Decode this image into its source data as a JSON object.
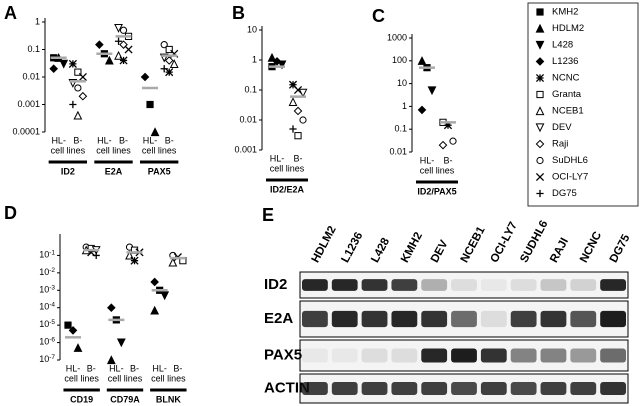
{
  "legend": {
    "names": [
      "KMH2",
      "HDLM2",
      "L428",
      "L1236",
      "NCNC",
      "Granta",
      "NCEB1",
      "DEV",
      "Raji",
      "SuDHL6",
      "OCI-LY7",
      "DG75"
    ],
    "markers": [
      "square",
      "triangle",
      "down",
      "diamond",
      "star",
      "open-square",
      "open-triangle",
      "open-down",
      "open-diamond",
      "open-circle",
      "cross",
      "plus"
    ]
  },
  "chart_data": [
    {
      "type": "scatter",
      "label": "A",
      "log_scale": true,
      "ylim": [
        0.0001,
        1
      ],
      "yticks": [
        0.0001,
        0.001,
        0.01,
        0.1,
        1
      ],
      "groups": [
        {
          "name": "ID2",
          "sublabel": "cell lines",
          "columns": [
            {
              "name": "HL-",
              "mean": 0.05,
              "points": [
                {
                  "cell": 0,
                  "value": 0.05
                },
                {
                  "cell": 1,
                  "value": 0.05
                },
                {
                  "cell": 2,
                  "value": 0.03
                },
                {
                  "cell": 3,
                  "value": 0.02
                }
              ]
            },
            {
              "name": "B-",
              "mean": 0.007,
              "points": [
                {
                  "cell": 4,
                  "value": 0.03
                },
                {
                  "cell": 5,
                  "value": 0.015
                },
                {
                  "cell": 10,
                  "value": 0.01
                },
                {
                  "cell": 7,
                  "value": 0.006
                },
                {
                  "cell": 9,
                  "value": 0.004
                },
                {
                  "cell": 8,
                  "value": 0.002
                },
                {
                  "cell": 11,
                  "value": 0.001
                },
                {
                  "cell": 6,
                  "value": 0.0004
                }
              ]
            }
          ]
        },
        {
          "name": "E2A",
          "sublabel": "cell lines",
          "columns": [
            {
              "name": "HL-",
              "mean": 0.07,
              "points": [
                {
                  "cell": 3,
                  "value": 0.15
                },
                {
                  "cell": 0,
                  "value": 0.07
                },
                {
                  "cell": 1,
                  "value": 0.04
                }
              ]
            },
            {
              "name": "B-",
              "mean": 0.3,
              "points": [
                {
                  "cell": 7,
                  "value": 0.6
                },
                {
                  "cell": 9,
                  "value": 0.5
                },
                {
                  "cell": 5,
                  "value": 0.3
                },
                {
                  "cell": 11,
                  "value": 0.2
                },
                {
                  "cell": 8,
                  "value": 0.15
                },
                {
                  "cell": 10,
                  "value": 0.1
                },
                {
                  "cell": 6,
                  "value": 0.06
                },
                {
                  "cell": 4,
                  "value": 0.04
                }
              ]
            }
          ]
        },
        {
          "name": "PAX5",
          "sublabel": "cell lines",
          "columns": [
            {
              "name": "HL-",
              "mean": 0.004,
              "points": [
                {
                  "cell": 3,
                  "value": 0.01
                },
                {
                  "cell": 0,
                  "value": 0.001
                },
                {
                  "cell": 1,
                  "value": 0.0001
                }
              ]
            },
            {
              "name": "B-",
              "mean": 0.06,
              "points": [
                {
                  "cell": 9,
                  "value": 0.15
                },
                {
                  "cell": 5,
                  "value": 0.1
                },
                {
                  "cell": 10,
                  "value": 0.07
                },
                {
                  "cell": 7,
                  "value": 0.05
                },
                {
                  "cell": 8,
                  "value": 0.04
                },
                {
                  "cell": 6,
                  "value": 0.03
                },
                {
                  "cell": 11,
                  "value": 0.02
                },
                {
                  "cell": 4,
                  "value": 0.015
                }
              ]
            }
          ]
        }
      ]
    },
    {
      "type": "scatter",
      "label": "B",
      "log_scale": true,
      "ylim": [
        0.001,
        10
      ],
      "yticks": [
        0.001,
        0.01,
        0.1,
        1,
        10
      ],
      "groups": [
        {
          "name": "ID2/E2A",
          "sublabel": "cell lines",
          "columns": [
            {
              "name": "HL-",
              "mean": 0.6,
              "points": [
                {
                  "cell": 1,
                  "value": 1.2
                },
                {
                  "cell": 3,
                  "value": 0.9
                },
                {
                  "cell": 2,
                  "value": 0.7
                },
                {
                  "cell": 0,
                  "value": 0.6
                }
              ]
            },
            {
              "name": "B-",
              "mean": 0.06,
              "points": [
                {
                  "cell": 4,
                  "value": 0.15
                },
                {
                  "cell": 10,
                  "value": 0.1
                },
                {
                  "cell": 7,
                  "value": 0.08
                },
                {
                  "cell": 6,
                  "value": 0.04
                },
                {
                  "cell": 8,
                  "value": 0.02
                },
                {
                  "cell": 9,
                  "value": 0.01
                },
                {
                  "cell": 11,
                  "value": 0.005
                },
                {
                  "cell": 5,
                  "value": 0.003
                }
              ]
            }
          ]
        }
      ]
    },
    {
      "type": "scatter",
      "label": "C",
      "log_scale": true,
      "ylim": [
        0.01,
        1000
      ],
      "yticks": [
        0.01,
        0.1,
        1,
        10,
        100,
        1000
      ],
      "groups": [
        {
          "name": "ID2/PAX5",
          "sublabel": "cell lines",
          "columns": [
            {
              "name": "HL-",
              "mean": 50,
              "points": [
                {
                  "cell": 1,
                  "value": 100
                },
                {
                  "cell": 0,
                  "value": 50
                },
                {
                  "cell": 2,
                  "value": 5
                },
                {
                  "cell": 3,
                  "value": 0.7
                }
              ]
            },
            {
              "name": "B-",
              "mean": 0.2,
              "points": [
                {
                  "cell": 5,
                  "value": 0.2
                },
                {
                  "cell": 4,
                  "value": 0.15
                },
                {
                  "cell": 9,
                  "value": 0.03
                },
                {
                  "cell": 8,
                  "value": 0.02
                }
              ]
            }
          ]
        }
      ]
    },
    {
      "type": "scatter",
      "label": "D",
      "log_scale": true,
      "ylim": [
        1e-07,
        1
      ],
      "yticks": [
        {
          "value": 1e-07,
          "label": "10-7"
        },
        {
          "value": 1e-06,
          "label": "10-6"
        },
        {
          "value": 1e-05,
          "label": "10-5"
        },
        {
          "value": 0.0001,
          "label": "10-4"
        },
        {
          "value": 0.001,
          "label": "10-3"
        },
        {
          "value": 0.01,
          "label": "10-2"
        },
        {
          "value": 0.1,
          "label": "10-1"
        }
      ],
      "groups": [
        {
          "name": "CD19",
          "sublabel": "cell lines",
          "columns": [
            {
              "name": "HL-",
              "mean": 2e-06,
              "points": [
                {
                  "cell": 0,
                  "value": 1e-05
                },
                {
                  "cell": 3,
                  "value": 5e-06
                },
                {
                  "cell": 1,
                  "value": 5e-07
                }
              ]
            },
            {
              "name": "B-",
              "mean": 0.2,
              "points": [
                {
                  "cell": 9,
                  "value": 0.3
                },
                {
                  "cell": 5,
                  "value": 0.25
                },
                {
                  "cell": 7,
                  "value": 0.2
                },
                {
                  "cell": 6,
                  "value": 0.2
                },
                {
                  "cell": 10,
                  "value": 0.15
                },
                {
                  "cell": 11,
                  "value": 0.1
                }
              ]
            }
          ]
        },
        {
          "name": "CD79A",
          "sublabel": "cell lines",
          "columns": [
            {
              "name": "HL-",
              "mean": 2e-05,
              "points": [
                {
                  "cell": 3,
                  "value": 0.0001
                },
                {
                  "cell": 0,
                  "value": 2e-05
                },
                {
                  "cell": 2,
                  "value": 1e-06
                },
                {
                  "cell": 1,
                  "value": 1e-07
                }
              ]
            },
            {
              "name": "B-",
              "mean": 0.15,
              "points": [
                {
                  "cell": 9,
                  "value": 0.3
                },
                {
                  "cell": 5,
                  "value": 0.2
                },
                {
                  "cell": 10,
                  "value": 0.15
                },
                {
                  "cell": 6,
                  "value": 0.1
                },
                {
                  "cell": 4,
                  "value": 0.05
                }
              ]
            }
          ]
        },
        {
          "name": "BLNK",
          "sublabel": "cell lines",
          "columns": [
            {
              "name": "HL-",
              "mean": 0.001,
              "points": [
                {
                  "cell": 3,
                  "value": 0.003
                },
                {
                  "cell": 0,
                  "value": 0.001
                },
                {
                  "cell": 2,
                  "value": 0.0005
                },
                {
                  "cell": 1,
                  "value": 7e-05
                }
              ]
            },
            {
              "name": "B-",
              "mean": 0.07,
              "points": [
                {
                  "cell": 9,
                  "value": 0.1
                },
                {
                  "cell": 10,
                  "value": 0.08
                },
                {
                  "cell": 5,
                  "value": 0.05
                },
                {
                  "cell": 6,
                  "value": 0.04
                }
              ]
            }
          ]
        }
      ]
    }
  ],
  "blot": {
    "label": "E",
    "lanes": [
      "HDLM2",
      "L1236",
      "L428",
      "KMH2",
      "DEV",
      "NCEB1",
      "OCI-LY7",
      "SUDHL6",
      "RAJI",
      "NCNC",
      "DG75"
    ],
    "rows": [
      {
        "name": "ID2",
        "bands": [
          0.9,
          0.9,
          0.85,
          0.8,
          0.3,
          0.1,
          0.05,
          0.1,
          0.2,
          0.15,
          0.9
        ]
      },
      {
        "name": "E2A",
        "bands": [
          0.8,
          0.9,
          0.85,
          0.9,
          0.85,
          0.6,
          0.1,
          0.8,
          0.85,
          0.7,
          0.95
        ]
      },
      {
        "name": "PAX5",
        "bands": [
          0.05,
          0.05,
          0.1,
          0.1,
          0.9,
          0.95,
          0.85,
          0.5,
          0.5,
          0.4,
          0.6
        ]
      },
      {
        "name": "ACTIN",
        "bands": [
          0.8,
          0.8,
          0.8,
          0.8,
          0.8,
          0.75,
          0.8,
          0.75,
          0.8,
          0.8,
          0.85
        ]
      }
    ]
  }
}
